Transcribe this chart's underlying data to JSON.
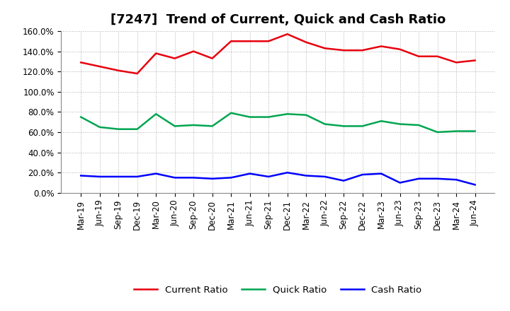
{
  "title": "[7247]  Trend of Current, Quick and Cash Ratio",
  "labels": [
    "Mar-19",
    "Jun-19",
    "Sep-19",
    "Dec-19",
    "Mar-20",
    "Jun-20",
    "Sep-20",
    "Dec-20",
    "Mar-21",
    "Jun-21",
    "Sep-21",
    "Dec-21",
    "Mar-22",
    "Jun-22",
    "Sep-22",
    "Dec-22",
    "Mar-23",
    "Jun-23",
    "Sep-23",
    "Dec-23",
    "Mar-24",
    "Jun-24"
  ],
  "current_ratio": [
    1.29,
    1.25,
    1.21,
    1.18,
    1.38,
    1.33,
    1.4,
    1.33,
    1.5,
    1.5,
    1.5,
    1.57,
    1.49,
    1.43,
    1.41,
    1.41,
    1.45,
    1.42,
    1.35,
    1.35,
    1.29,
    1.31
  ],
  "quick_ratio": [
    0.75,
    0.65,
    0.63,
    0.63,
    0.78,
    0.66,
    0.67,
    0.66,
    0.79,
    0.75,
    0.75,
    0.78,
    0.77,
    0.68,
    0.66,
    0.66,
    0.71,
    0.68,
    0.67,
    0.6,
    0.61,
    0.61
  ],
  "cash_ratio": [
    0.17,
    0.16,
    0.16,
    0.16,
    0.19,
    0.15,
    0.15,
    0.14,
    0.15,
    0.19,
    0.16,
    0.2,
    0.17,
    0.16,
    0.12,
    0.18,
    0.19,
    0.1,
    0.14,
    0.14,
    0.13,
    0.08
  ],
  "current_color": "#e8000d",
  "quick_color": "#00a550",
  "cash_color": "#0000ff",
  "bg_color": "#ffffff",
  "plot_bg_color": "#ffffff",
  "grid_color": "#b0b0b0",
  "ylim": [
    0.0,
    1.6
  ],
  "yticks": [
    0.0,
    0.2,
    0.4,
    0.6,
    0.8,
    1.0,
    1.2,
    1.4,
    1.6
  ],
  "ytick_labels": [
    "0.0%",
    "20.0%",
    "40.0%",
    "60.0%",
    "80.0%",
    "100.0%",
    "120.0%",
    "140.0%",
    "160.0%"
  ],
  "line_width": 1.8,
  "title_fontsize": 13,
  "tick_fontsize": 8.5
}
